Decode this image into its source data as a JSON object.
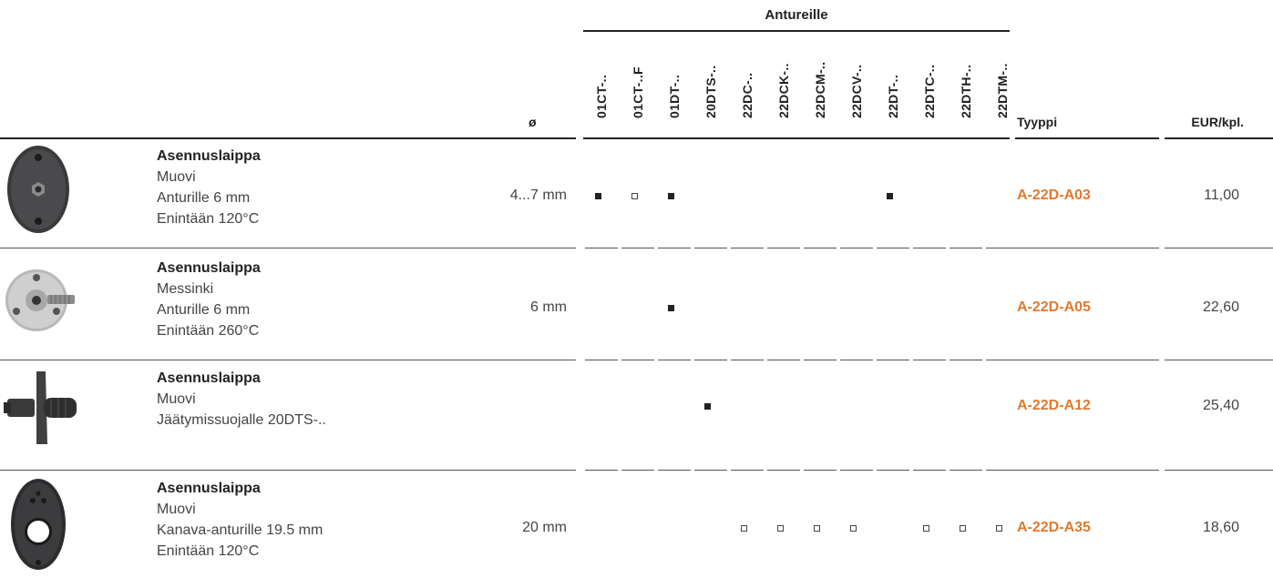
{
  "header": {
    "group_title": "Antureille",
    "diameter_label": "ø",
    "type_label": "Tyyppi",
    "price_label": "EUR/kpl.",
    "sensor_columns": [
      "01CT-..",
      "01CT-..F",
      "01DT-..",
      "20DTS-..",
      "22DC-..",
      "22DCK-..",
      "22DCM-..",
      "22DCV-..",
      "22DT-..",
      "22DTC-..",
      "22DTH-..",
      "22DTM-.."
    ]
  },
  "rows": [
    {
      "title": "Asennuslaippa",
      "lines": [
        "Muovi",
        "Anturille 6 mm",
        "Enintään 120°C"
      ],
      "diameter": "4...7 mm",
      "marks": [
        "filled",
        "open",
        "filled",
        "",
        "",
        "",
        "",
        "",
        "filled",
        "",
        "",
        ""
      ],
      "type": "A-22D-A03",
      "price": "11,00",
      "image": "oval-black-mounting-flange"
    },
    {
      "title": "Asennuslaippa",
      "lines": [
        "Messinki",
        "Anturille 6 mm",
        "Enintään 260°C"
      ],
      "diameter": "6 mm",
      "marks": [
        "",
        "",
        "filled",
        "",
        "",
        "",
        "",
        "",
        "",
        "",
        "",
        ""
      ],
      "type": "A-22D-A05",
      "price": "22,60",
      "image": "round-brass-mounting-flange"
    },
    {
      "title": "Asennuslaippa",
      "lines": [
        "Muovi",
        "Jäätymissuojalle 20DTS-.."
      ],
      "diameter": "",
      "marks": [
        "",
        "",
        "",
        "filled",
        "",
        "",
        "",
        "",
        "",
        "",
        "",
        ""
      ],
      "type": "A-22D-A12",
      "price": "25,40",
      "image": "plastic-tube-mounting-flange"
    },
    {
      "title": "Asennuslaippa",
      "lines": [
        "Muovi",
        "Kanava-anturille 19.5 mm",
        "Enintään 120°C"
      ],
      "diameter": "20 mm",
      "marks": [
        "",
        "",
        "",
        "",
        "open",
        "open",
        "open",
        "open",
        "",
        "open",
        "open",
        "open"
      ],
      "type": "A-22D-A35",
      "price": "18,60",
      "image": "oval-duct-mounting-flange"
    }
  ],
  "colors": {
    "type_accent": "#e07a2e",
    "text": "#444444",
    "mark": "#222222"
  }
}
